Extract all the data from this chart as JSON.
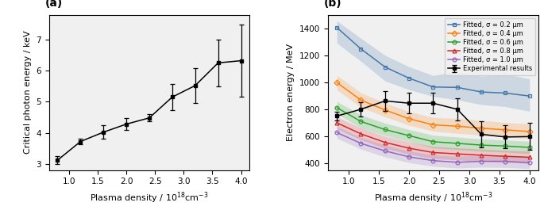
{
  "panel_a": {
    "x": [
      0.8,
      1.2,
      1.6,
      2.0,
      2.4,
      2.8,
      3.2,
      3.6,
      4.0
    ],
    "y": [
      3.12,
      3.72,
      4.02,
      4.28,
      4.48,
      5.15,
      5.52,
      6.25,
      6.32
    ],
    "yerr": [
      0.13,
      0.08,
      0.22,
      0.2,
      0.12,
      0.42,
      0.55,
      0.75,
      1.15
    ],
    "xlabel": "Plasma density / 10$^{18}$cm$^{-3}$",
    "ylabel": "Critical photon energy / keV",
    "ylim": [
      2.8,
      7.8
    ],
    "yticks": [
      3,
      4,
      5,
      6,
      7
    ],
    "xlim": [
      0.65,
      4.15
    ],
    "xticks": [
      1.0,
      1.5,
      2.0,
      2.5,
      3.0,
      3.5,
      4.0
    ],
    "label": "(a)"
  },
  "panel_b": {
    "x": [
      0.8,
      1.2,
      1.6,
      2.0,
      2.4,
      2.8,
      3.2,
      3.6,
      4.0
    ],
    "curves": {
      "sigma02": {
        "y": [
          1405,
          1247,
          1113,
          1030,
          965,
          962,
          928,
          920,
          898
        ],
        "y_lo": [
          1290,
          1155,
          1010,
          945,
          895,
          870,
          835,
          820,
          785
        ],
        "y_hi": [
          1455,
          1325,
          1200,
          1115,
          1050,
          1080,
          1045,
          1060,
          1025
        ],
        "color": "#4477AA",
        "marker": "s",
        "label": "Fitted, σ = 0.2 μm"
      },
      "sigma04": {
        "y": [
          998,
          868,
          795,
          730,
          685,
          675,
          660,
          648,
          635
        ],
        "y_lo": [
          945,
          815,
          745,
          682,
          638,
          622,
          608,
          597,
          582
        ],
        "y_hi": [
          1052,
          922,
          848,
          782,
          740,
          732,
          718,
          702,
          692
        ],
        "color": "#FF7F0E",
        "marker": "D",
        "label": "Fitted, σ = 0.4 μm"
      },
      "sigma06": {
        "y": [
          812,
          710,
          650,
          605,
          560,
          548,
          535,
          528,
          518
        ],
        "y_lo": [
          765,
          663,
          605,
          560,
          515,
          503,
          490,
          483,
          473
        ],
        "y_hi": [
          858,
          758,
          698,
          650,
          608,
          595,
          580,
          572,
          563
        ],
        "color": "#2CA02C",
        "marker": "o",
        "label": "Fitted, σ = 0.6 μm"
      },
      "sigma08": {
        "y": [
          700,
          618,
          555,
          512,
          480,
          470,
          460,
          452,
          445
        ],
        "y_lo": [
          655,
          573,
          510,
          467,
          435,
          425,
          415,
          407,
          400
        ],
        "y_hi": [
          745,
          663,
          600,
          558,
          525,
          515,
          505,
          497,
          490
        ],
        "color": "#D62728",
        "marker": "^",
        "label": "Fitted, σ = 0.8 μm"
      },
      "sigma10": {
        "y": [
          628,
          548,
          492,
          448,
          420,
          408,
          415,
          415,
          405
        ],
        "y_lo": [
          585,
          505,
          448,
          405,
          378,
          365,
          372,
          370,
          360
        ],
        "y_hi": [
          672,
          592,
          536,
          492,
          462,
          452,
          458,
          460,
          450
        ],
        "color": "#9467BD",
        "marker": "o",
        "label": "Fitted, σ = 1.0 μm"
      }
    },
    "exp": {
      "x": [
        0.8,
        1.2,
        1.6,
        2.0,
        2.4,
        2.8,
        3.2,
        3.6,
        4.0
      ],
      "y": [
        750,
        800,
        862,
        845,
        845,
        800,
        615,
        595,
        598
      ],
      "yerr": [
        30,
        55,
        75,
        75,
        75,
        80,
        95,
        85,
        100
      ],
      "label": "Experimental results"
    },
    "xlabel": "Plasma density / 10$^{18}$cm$^{-3}$",
    "ylabel": "Electron energy / MeV",
    "ylim": [
      350,
      1500
    ],
    "yticks": [
      400,
      600,
      800,
      1000,
      1200,
      1400
    ],
    "xlim": [
      0.65,
      4.15
    ],
    "xticks": [
      1.0,
      1.5,
      2.0,
      2.5,
      3.0,
      3.5,
      4.0
    ],
    "label": "(b)"
  },
  "bg_color": "#f0f0f0"
}
